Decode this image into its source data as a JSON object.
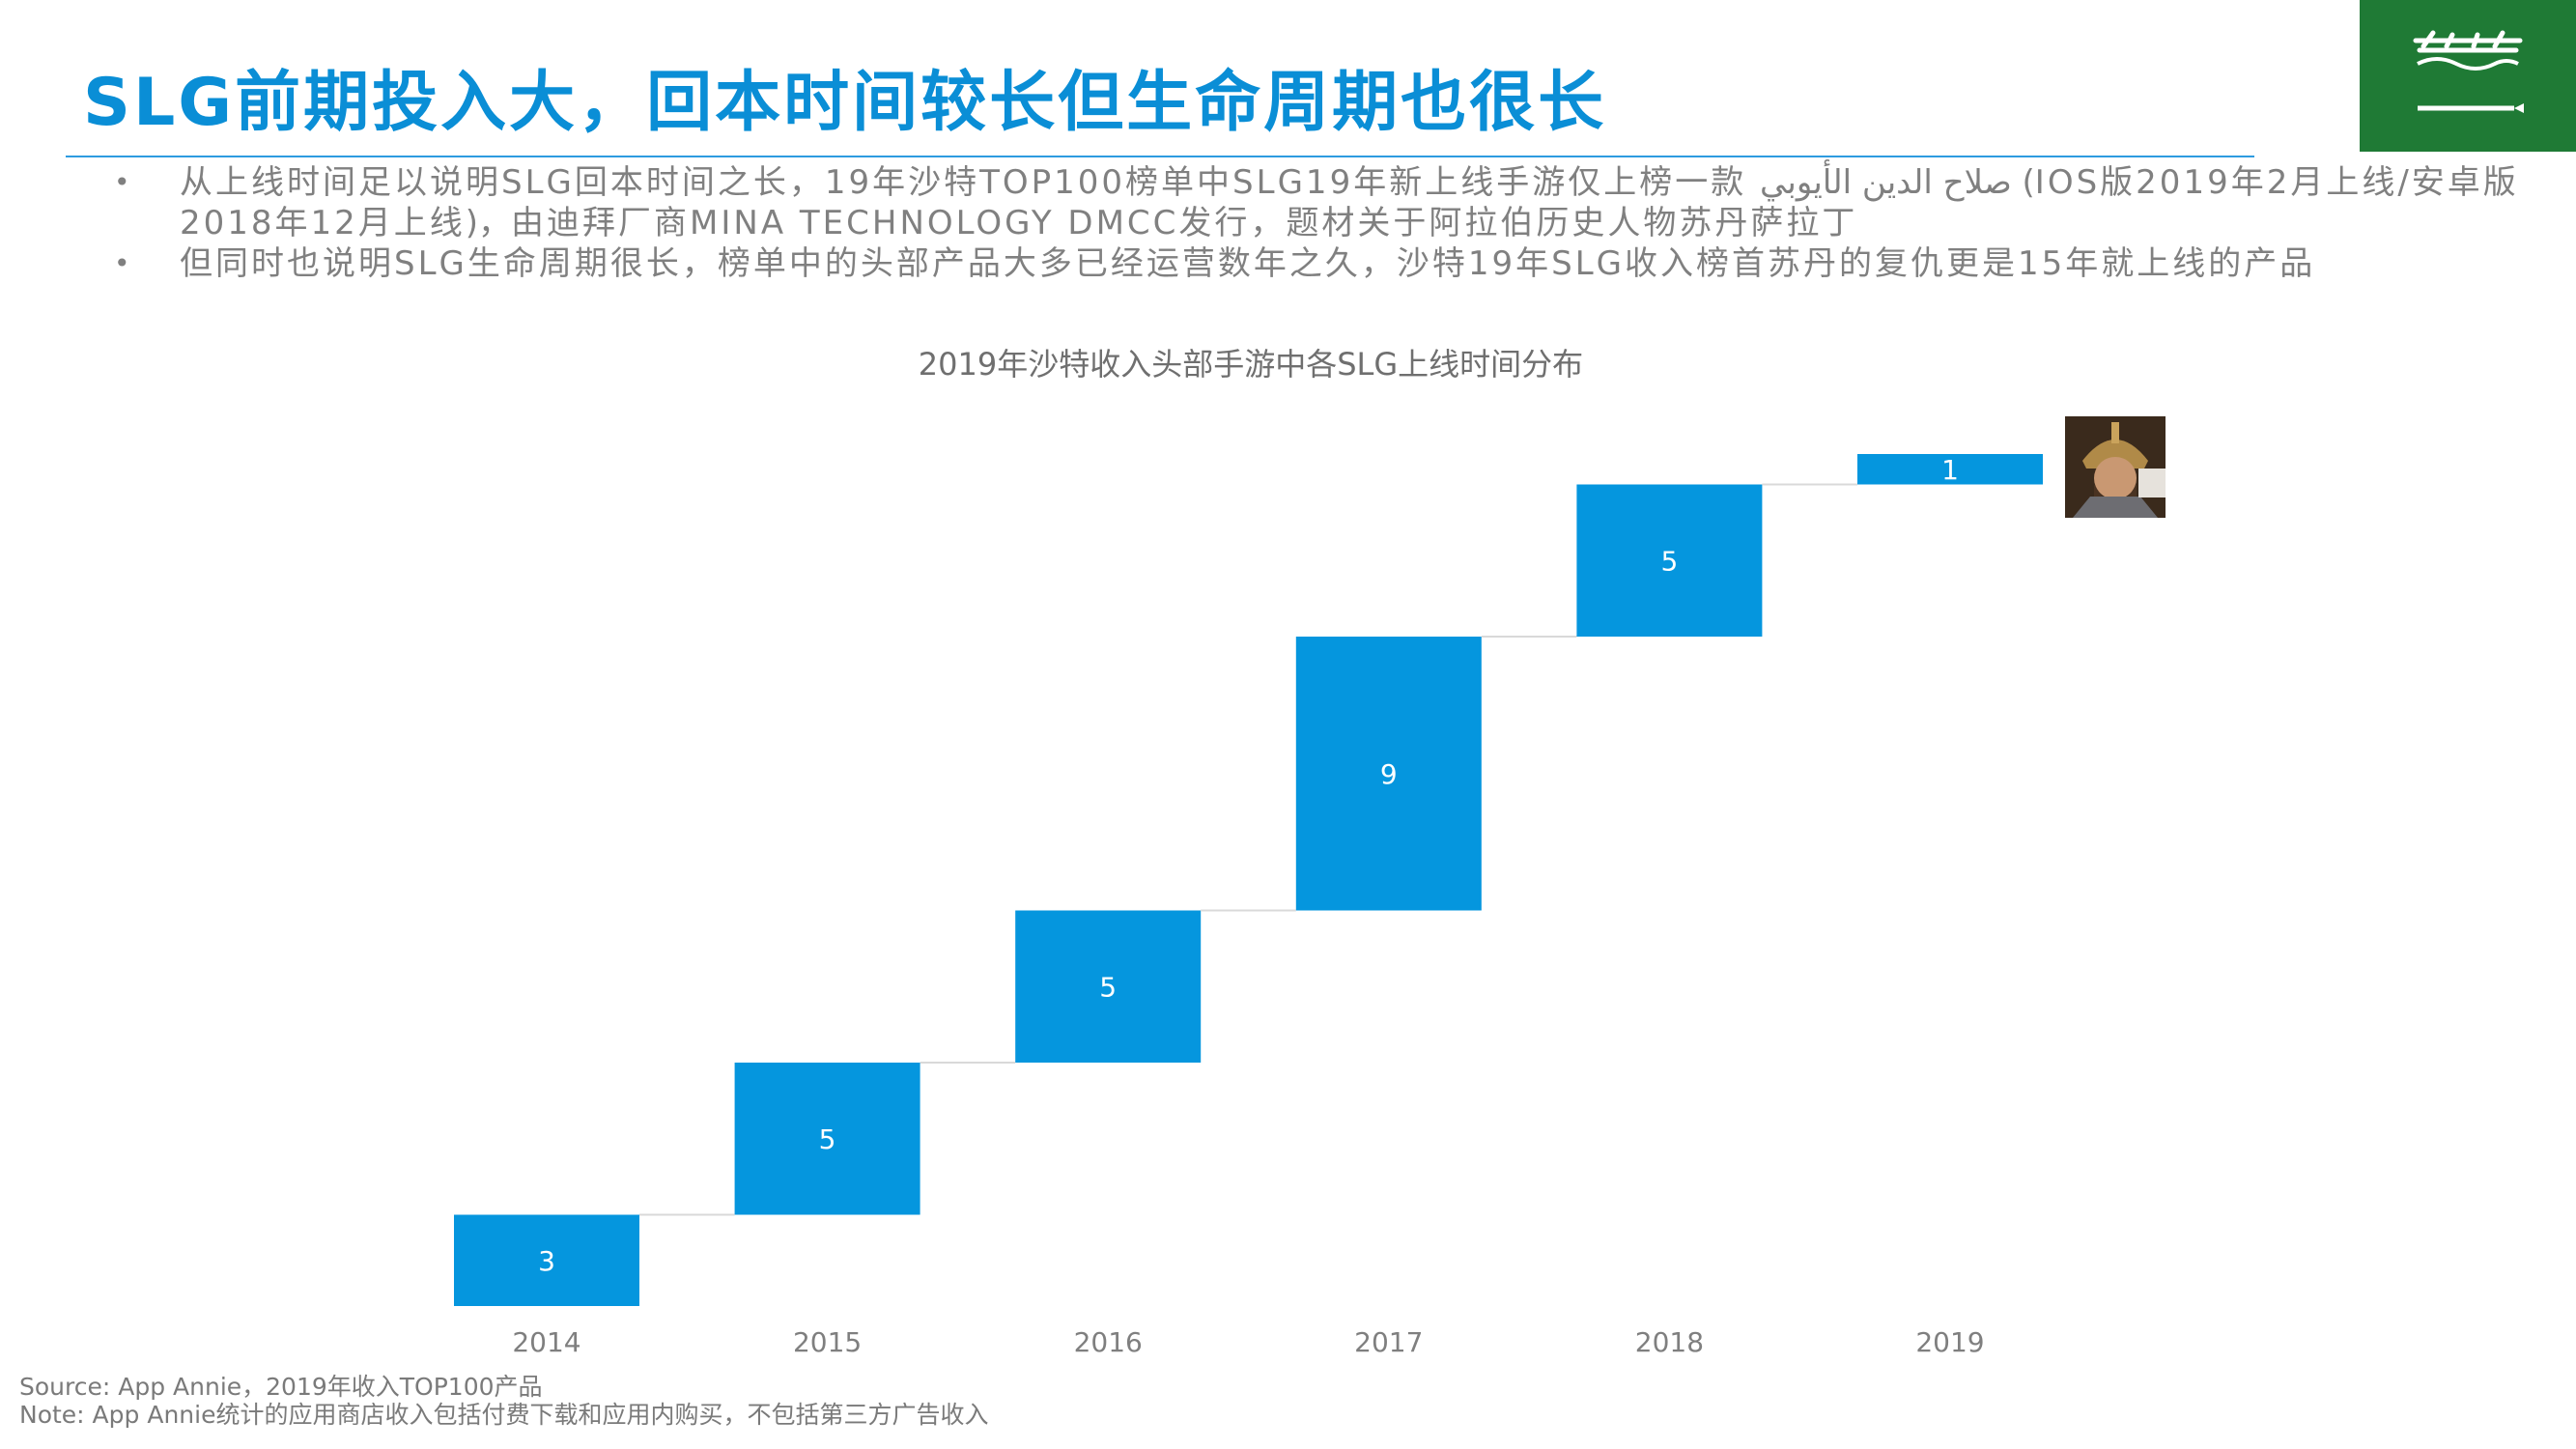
{
  "title": "SLG前期投入大，回本时间较长但生命周期也很长",
  "bullets": [
    "从上线时间足以说明SLG回本时间之长，19年沙特TOP100榜单中SLG19年新上线手游仅上榜一款 صلاح الدين الأيوبي (IOS版2019年2月上线/安卓版2018年12月上线)，由迪拜厂商MINA TECHNOLOGY DMCC发行，题材关于阿拉伯历史人物苏丹萨拉丁",
    "但同时也说明SLG生命周期很长，榜单中的头部产品大多已经运营数年之久，沙特19年SLG收入榜首苏丹的复仇更是15年就上线的产品"
  ],
  "bullet_icon": "bullet-dot",
  "flag_icon": "saudi-flag-icon",
  "colors": {
    "accent": "#0a8ed6",
    "bar": "#0596de",
    "connector": "#d9d9d9",
    "flag_green": "#1f7a35"
  },
  "chart_data": {
    "type": "waterfall",
    "title": "2019年沙特收入头部手游中各SLG上线时间分布",
    "categories": [
      "2014",
      "2015",
      "2016",
      "2017",
      "2018",
      "2019"
    ],
    "values": [
      3,
      5,
      5,
      9,
      5,
      1
    ],
    "cumulative_total": 28,
    "data_labels": [
      "3",
      "5",
      "5",
      "9",
      "5",
      "1"
    ],
    "xlabel": "",
    "ylabel": "",
    "ylim": [
      0,
      28
    ],
    "grid": false,
    "legend": "none"
  },
  "source_lines": [
    "Source: App Annie，2019年收入TOP100产品",
    "Note: App Annie统计的应用商店收入包括付费下载和应用内购买，不包括第三方广告收入"
  ]
}
